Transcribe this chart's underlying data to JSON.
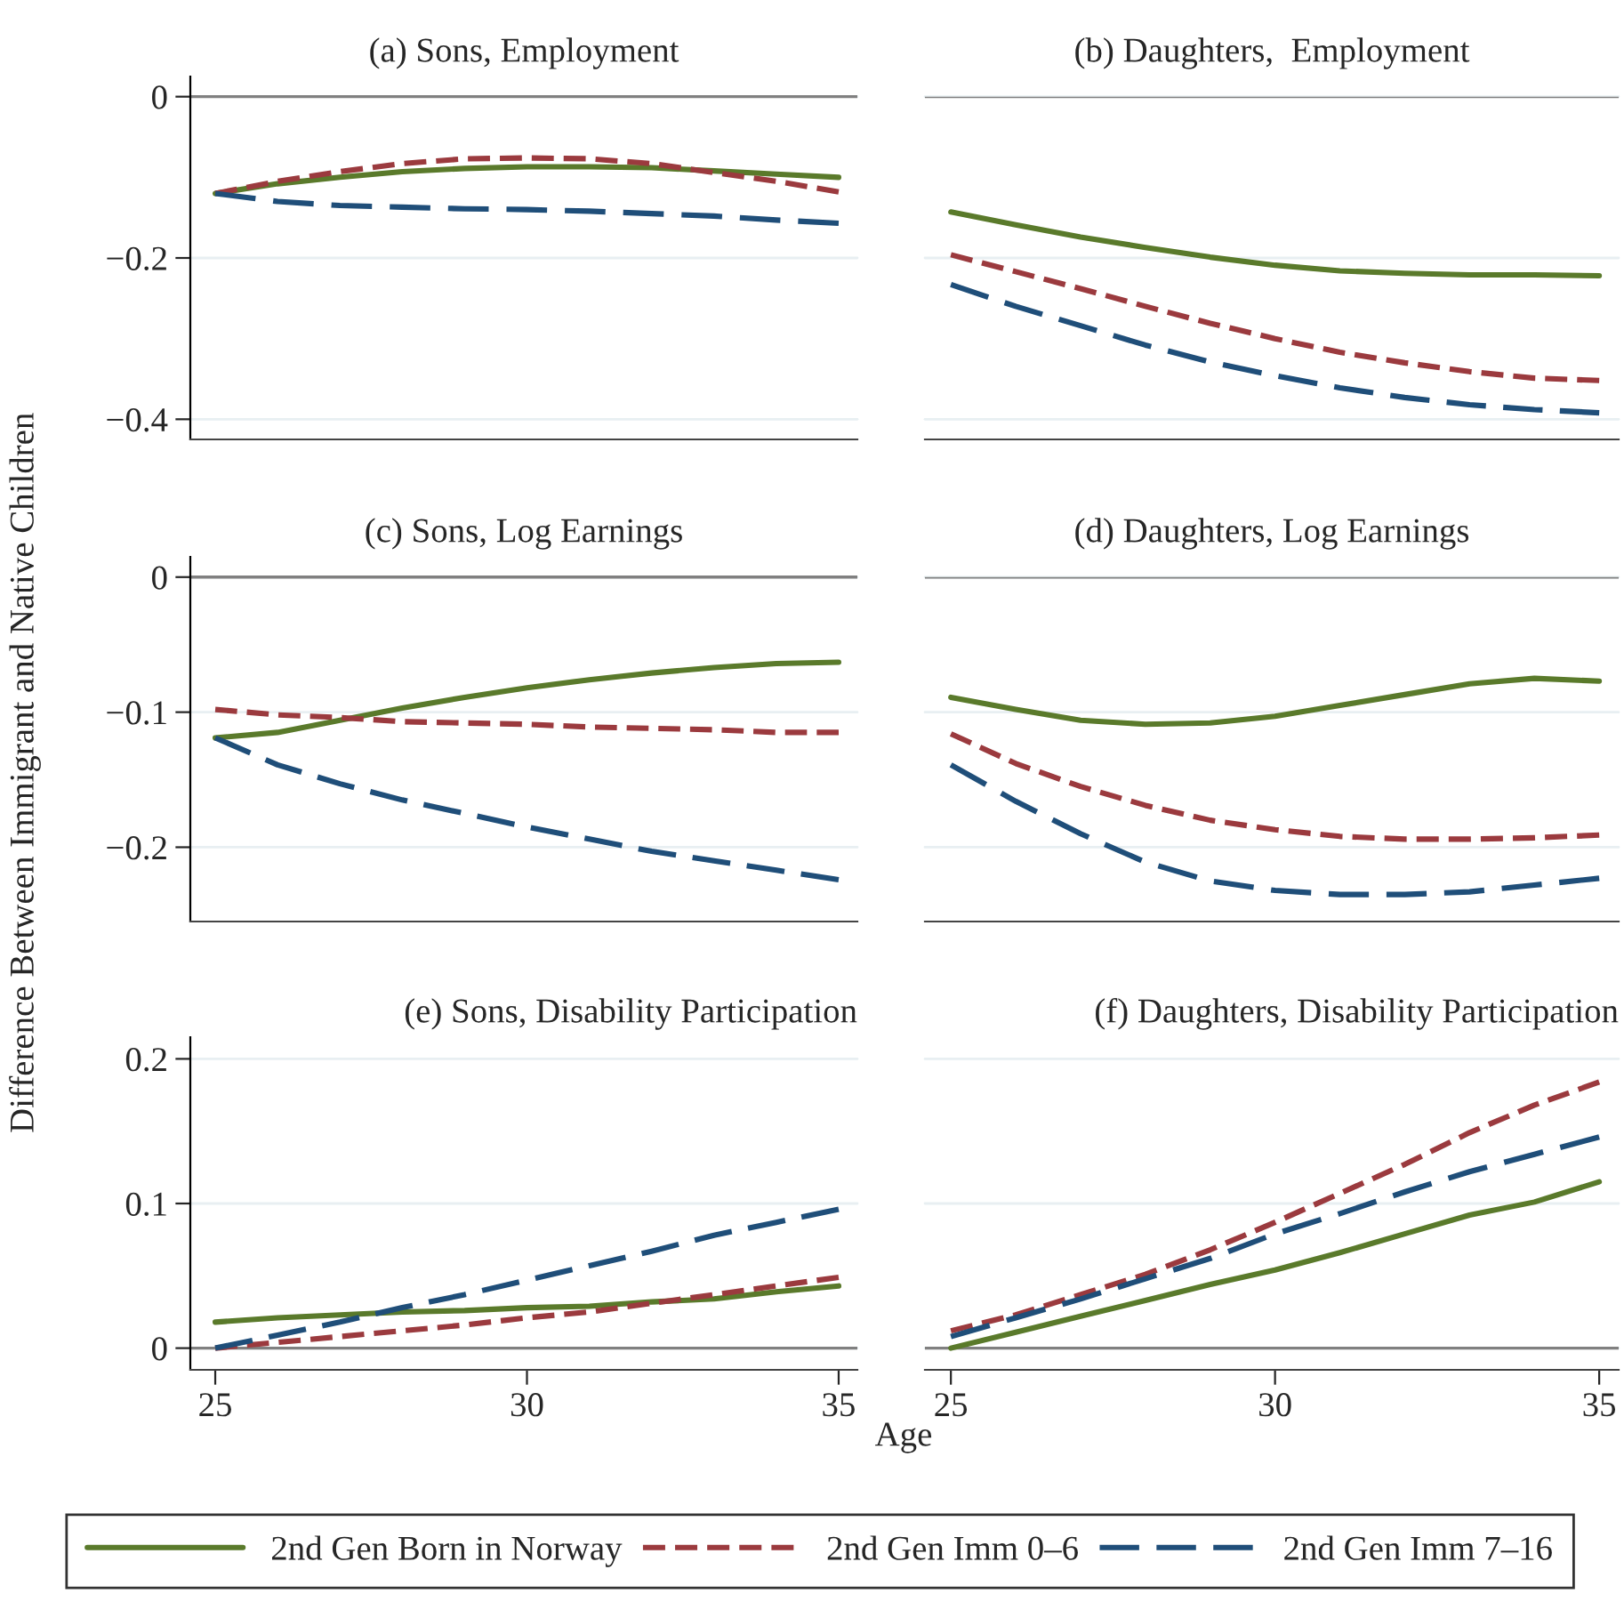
{
  "chart_data": [
    {
      "type": "line",
      "title": "(a) Sons, Employment",
      "x": [
        25,
        26,
        27,
        28,
        29,
        30,
        31,
        32,
        33,
        34,
        35
      ],
      "xlim": [
        24.6,
        35.3
      ],
      "xticks": [
        25,
        30,
        35
      ],
      "ylim": [
        -0.425,
        0.025
      ],
      "yticks": [
        {
          "value": -0.4,
          "label": "−0.4"
        },
        {
          "value": -0.2,
          "label": "−0.2"
        },
        0
      ],
      "grid": "y",
      "tick_labels": "y",
      "legend": "bottom",
      "ref_lines": [
        {
          "axis": "y",
          "value": 0,
          "color": "#808080"
        }
      ],
      "series": [
        {
          "name": "2nd Gen Born in Norway",
          "color": "#5a7a2b",
          "line_style": "solid",
          "values": [
            -0.12,
            -0.108,
            -0.1,
            -0.093,
            -0.089,
            -0.087,
            -0.087,
            -0.088,
            -0.092,
            -0.096,
            -0.1
          ]
        },
        {
          "name": "2nd Gen Imm 0–6",
          "color": "#9b3a3e",
          "line_style": "dashed",
          "values": [
            -0.12,
            -0.105,
            -0.093,
            -0.083,
            -0.077,
            -0.076,
            -0.077,
            -0.083,
            -0.094,
            -0.105,
            -0.118
          ]
        },
        {
          "name": "2nd Gen Imm 7–16",
          "color": "#1f4e79",
          "line_style": "dashed",
          "values": [
            -0.12,
            -0.13,
            -0.135,
            -0.137,
            -0.139,
            -0.14,
            -0.142,
            -0.145,
            -0.148,
            -0.153,
            -0.157
          ]
        }
      ]
    },
    {
      "type": "line",
      "title": "(b) Daughters,  Employment",
      "x": [
        25,
        26,
        27,
        28,
        29,
        30,
        31,
        32,
        33,
        34,
        35
      ],
      "xlim": [
        24.6,
        35.3
      ],
      "xticks": [
        25,
        30,
        35
      ],
      "ylim": [
        -0.425,
        0
      ],
      "yticks": [
        -0.4,
        -0.2,
        0
      ],
      "grid": "y",
      "tick_labels": false,
      "ref_lines": [
        {
          "axis": "y",
          "value": 0,
          "color": "#808080"
        }
      ],
      "series": [
        {
          "color": "#5a7a2b",
          "line_style": "solid",
          "values": [
            -0.143,
            -0.159,
            -0.174,
            -0.187,
            -0.199,
            -0.209,
            -0.216,
            -0.219,
            -0.221,
            -0.221,
            -0.222
          ]
        },
        {
          "color": "#9b3a3e",
          "line_style": "dashed",
          "values": [
            -0.196,
            -0.217,
            -0.238,
            -0.26,
            -0.281,
            -0.3,
            -0.317,
            -0.33,
            -0.341,
            -0.349,
            -0.352
          ]
        },
        {
          "color": "#1f4e79",
          "line_style": "dashed",
          "values": [
            -0.233,
            -0.26,
            -0.284,
            -0.308,
            -0.329,
            -0.346,
            -0.361,
            -0.373,
            -0.382,
            -0.388,
            -0.392
          ]
        }
      ]
    },
    {
      "type": "line",
      "title": "(c) Sons, Log Earnings",
      "ylabel": "Difference Between Immigrant and Native Children",
      "x": [
        25,
        26,
        27,
        28,
        29,
        30,
        31,
        32,
        33,
        34,
        35
      ],
      "xlim": [
        24.6,
        35.3
      ],
      "xticks": [
        25,
        30,
        35
      ],
      "ylim": [
        -0.255,
        0.015
      ],
      "yticks": [
        {
          "value": -0.2,
          "label": "−0.2"
        },
        {
          "value": -0.1,
          "label": "−0.1"
        },
        0
      ],
      "grid": "y",
      "tick_labels": "y",
      "ref_lines": [
        {
          "axis": "y",
          "value": 0,
          "color": "#808080"
        }
      ],
      "series": [
        {
          "color": "#5a7a2b",
          "line_style": "solid",
          "values": [
            -0.119,
            -0.115,
            -0.106,
            -0.097,
            -0.089,
            -0.082,
            -0.076,
            -0.071,
            -0.067,
            -0.064,
            -0.063
          ]
        },
        {
          "color": "#9b3a3e",
          "line_style": "dashed",
          "values": [
            -0.098,
            -0.102,
            -0.104,
            -0.107,
            -0.108,
            -0.109,
            -0.111,
            -0.112,
            -0.113,
            -0.115,
            -0.115
          ]
        },
        {
          "color": "#1f4e79",
          "line_style": "dashed",
          "values": [
            -0.119,
            -0.139,
            -0.153,
            -0.165,
            -0.175,
            -0.185,
            -0.194,
            -0.203,
            -0.21,
            -0.217,
            -0.224
          ]
        }
      ]
    },
    {
      "type": "line",
      "title": "(d) Daughters, Log Earnings",
      "x": [
        25,
        26,
        27,
        28,
        29,
        30,
        31,
        32,
        33,
        34,
        35
      ],
      "xlim": [
        24.6,
        35.3
      ],
      "xticks": [
        25,
        30,
        35
      ],
      "ylim": [
        -0.255,
        0
      ],
      "yticks": [
        -0.2,
        -0.1,
        0
      ],
      "grid": "y",
      "tick_labels": false,
      "ref_lines": [
        {
          "axis": "y",
          "value": 0,
          "color": "#808080"
        }
      ],
      "series": [
        {
          "color": "#5a7a2b",
          "line_style": "solid",
          "values": [
            -0.089,
            -0.098,
            -0.106,
            -0.109,
            -0.108,
            -0.103,
            -0.095,
            -0.087,
            -0.079,
            -0.075,
            -0.077
          ]
        },
        {
          "color": "#9b3a3e",
          "line_style": "dashed",
          "values": [
            -0.116,
            -0.138,
            -0.155,
            -0.169,
            -0.18,
            -0.187,
            -0.192,
            -0.194,
            -0.194,
            -0.193,
            -0.191
          ]
        },
        {
          "color": "#1f4e79",
          "line_style": "dashed",
          "values": [
            -0.139,
            -0.166,
            -0.19,
            -0.211,
            -0.225,
            -0.232,
            -0.235,
            -0.235,
            -0.233,
            -0.228,
            -0.223
          ]
        }
      ]
    },
    {
      "type": "line",
      "title": "(e) Sons, Disability Participation",
      "xlabel": "Age",
      "x": [
        25,
        26,
        27,
        28,
        29,
        30,
        31,
        32,
        33,
        34,
        35
      ],
      "xlim": [
        24.6,
        35.3
      ],
      "xticks": [
        25,
        30,
        35
      ],
      "ylim": [
        -0.015,
        0.215
      ],
      "yticks": [
        0,
        0.1,
        0.2
      ],
      "grid": "y",
      "ref_lines": [
        {
          "axis": "y",
          "value": 0,
          "color": "#808080"
        }
      ],
      "series": [
        {
          "color": "#5a7a2b",
          "line_style": "solid",
          "values": [
            0.018,
            0.021,
            0.023,
            0.025,
            0.026,
            0.028,
            0.029,
            0.032,
            0.034,
            0.039,
            0.043
          ]
        },
        {
          "color": "#9b3a3e",
          "line_style": "dashed",
          "values": [
            0,
            0.004,
            0.008,
            0.012,
            0.016,
            0.021,
            0.025,
            0.031,
            0.037,
            0.043,
            0.049
          ]
        },
        {
          "color": "#1f4e79",
          "line_style": "dashed",
          "values": [
            0,
            0.009,
            0.018,
            0.028,
            0.037,
            0.047,
            0.057,
            0.067,
            0.078,
            0.087,
            0.096
          ]
        }
      ]
    },
    {
      "type": "line",
      "title": "(f) Daughters, Disability Participation",
      "x": [
        25,
        26,
        27,
        28,
        29,
        30,
        31,
        32,
        33,
        34,
        35
      ],
      "xlim": [
        24.6,
        35.3
      ],
      "xticks": [
        25,
        30,
        35
      ],
      "ylim": [
        -0.015,
        0.2
      ],
      "yticks": [
        0,
        0.1,
        0.2
      ],
      "grid": "y",
      "tick_labels": "x",
      "ref_lines": [
        {
          "axis": "y",
          "value": 0,
          "color": "#808080"
        }
      ],
      "series": [
        {
          "color": "#5a7a2b",
          "line_style": "solid",
          "values": [
            0,
            0.011,
            0.022,
            0.033,
            0.044,
            0.054,
            0.066,
            0.079,
            0.092,
            0.101,
            0.115
          ]
        },
        {
          "color": "#9b3a3e",
          "line_style": "dashed",
          "values": [
            0.012,
            0.023,
            0.037,
            0.051,
            0.068,
            0.087,
            0.107,
            0.127,
            0.149,
            0.168,
            0.184
          ]
        },
        {
          "color": "#1f4e79",
          "line_style": "dashed",
          "values": [
            0.008,
            0.021,
            0.034,
            0.048,
            0.062,
            0.079,
            0.093,
            0.108,
            0.122,
            0.134,
            0.146
          ]
        }
      ]
    }
  ]
}
